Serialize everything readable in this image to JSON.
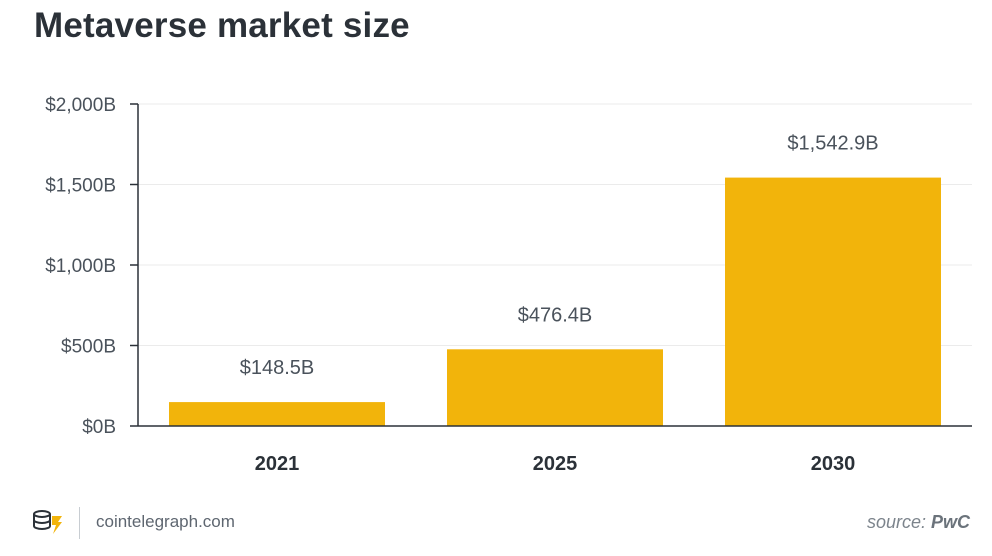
{
  "chart_data": {
    "type": "bar",
    "title": "Metaverse market size",
    "categories": [
      "2021",
      "2025",
      "2030"
    ],
    "values": [
      148.5,
      476.4,
      1542.9
    ],
    "value_labels": [
      "$148.5B",
      "$476.4B",
      "$1,542.9B"
    ],
    "ylim": [
      0,
      2000
    ],
    "yticks": [
      0,
      500,
      1000,
      1500,
      2000
    ],
    "ytick_labels": [
      "$0B",
      "$500B",
      "$1,000B",
      "$1,500B",
      "$2,000B"
    ],
    "xlabel": "",
    "ylabel": "",
    "grid": true,
    "bar_color": "#f2b40b"
  },
  "footer": {
    "site": "cointelegraph.com",
    "source_prefix": "source: ",
    "source_name": "PwC"
  },
  "colors": {
    "title": "#2b3138",
    "text": "#4a525b",
    "grid": "#ebebeb",
    "axis": "#2b3138"
  }
}
